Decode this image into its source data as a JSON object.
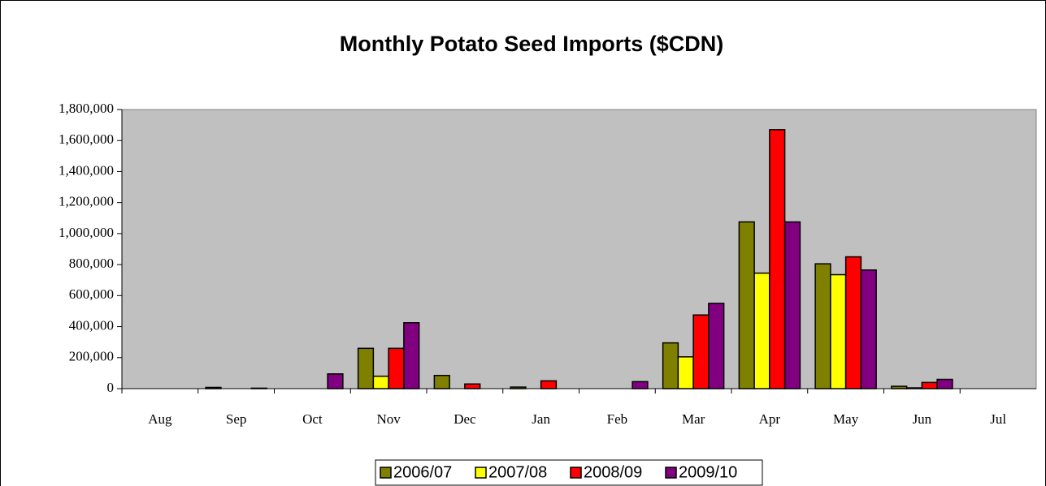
{
  "chart_data": {
    "type": "bar",
    "title": "Monthly Potato Seed Imports ($CDN)",
    "categories": [
      "Aug",
      "Sep",
      "Oct",
      "Nov",
      "Dec",
      "Jan",
      "Feb",
      "Mar",
      "Apr",
      "May",
      "Jun",
      "Jul"
    ],
    "series": [
      {
        "name": "2006/07",
        "color": "#808000",
        "values": [
          0,
          8000,
          0,
          260000,
          85000,
          10000,
          0,
          295000,
          1075000,
          805000,
          15000,
          0
        ]
      },
      {
        "name": "2007/08",
        "color": "#ffff00",
        "values": [
          0,
          0,
          0,
          80000,
          0,
          0,
          0,
          205000,
          745000,
          735000,
          5000,
          0
        ]
      },
      {
        "name": "2008/09",
        "color": "#ff0000",
        "values": [
          0,
          0,
          0,
          260000,
          30000,
          50000,
          0,
          475000,
          1670000,
          850000,
          40000,
          0
        ]
      },
      {
        "name": "2009/10",
        "color": "#800080",
        "values": [
          0,
          3000,
          95000,
          425000,
          0,
          0,
          45000,
          550000,
          1075000,
          765000,
          60000,
          0
        ]
      }
    ],
    "ylim": [
      0,
      1800000
    ],
    "yticks": [
      0,
      {
        "value": 200000,
        "label": "200,000"
      },
      {
        "value": 400000,
        "label": "400,000"
      },
      {
        "value": 600000,
        "label": "600,000"
      },
      {
        "value": 800000,
        "label": "800,000"
      },
      {
        "value": 1000000,
        "label": "1,000,000"
      },
      {
        "value": 1200000,
        "label": "1,200,000"
      },
      {
        "value": 1400000,
        "label": "1,400,000"
      },
      {
        "value": 1600000,
        "label": "1,600,000"
      },
      {
        "value": 1800000,
        "label": "1,800,000"
      }
    ],
    "plot_background": "#c0c0c0",
    "legend": "bottom"
  }
}
